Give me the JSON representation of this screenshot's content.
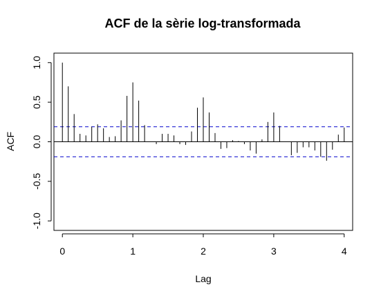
{
  "chart_data": {
    "type": "bar",
    "title": "ACF de la sèrie log-transformada",
    "xlabel": "Lag",
    "ylabel": "ACF",
    "xlim": [
      -0.12,
      4.12
    ],
    "ylim": [
      -1.12,
      1.12
    ],
    "x_ticks": [
      0,
      1,
      2,
      3,
      4
    ],
    "y_ticks": [
      -1.0,
      -0.5,
      0.0,
      0.5,
      1.0
    ],
    "x_tick_labels": [
      "0",
      "1",
      "2",
      "3",
      "4"
    ],
    "y_tick_labels": [
      "-1.0",
      "-0.5",
      "0.0",
      "0.5",
      "1.0"
    ],
    "confidence_bound": 0.19,
    "confidence_color": "#0000cc",
    "grid": false,
    "legend": "none",
    "lags": [
      0.0,
      0.0833,
      0.1667,
      0.25,
      0.3333,
      0.4167,
      0.5,
      0.5833,
      0.6667,
      0.75,
      0.8333,
      0.9167,
      1.0,
      1.0833,
      1.1667,
      1.25,
      1.3333,
      1.4167,
      1.5,
      1.5833,
      1.6667,
      1.75,
      1.8333,
      1.9167,
      2.0,
      2.0833,
      2.1667,
      2.25,
      2.3333,
      2.4167,
      2.5,
      2.5833,
      2.6667,
      2.75,
      2.8333,
      2.9167,
      3.0,
      3.0833,
      3.1667,
      3.25,
      3.3333,
      3.4167,
      3.5,
      3.5833,
      3.6667,
      3.75,
      3.8333,
      3.9167,
      4.0
    ],
    "values": [
      1.0,
      0.7,
      0.35,
      0.1,
      0.08,
      0.19,
      0.22,
      0.17,
      0.06,
      0.07,
      0.27,
      0.58,
      0.75,
      0.52,
      0.21,
      0.0,
      -0.03,
      0.1,
      0.1,
      0.08,
      -0.03,
      -0.04,
      0.13,
      0.43,
      0.56,
      0.37,
      0.11,
      -0.09,
      -0.08,
      0.02,
      0.01,
      -0.03,
      -0.11,
      -0.15,
      0.03,
      0.25,
      0.37,
      0.2,
      0.0,
      -0.17,
      -0.14,
      -0.07,
      -0.07,
      -0.11,
      -0.19,
      -0.24,
      -0.1,
      0.09,
      0.18
    ]
  }
}
